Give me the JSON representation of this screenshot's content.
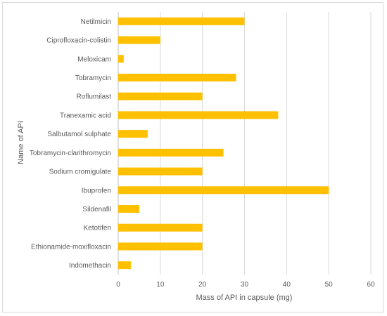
{
  "chart_data": {
    "type": "bar",
    "orientation": "horizontal",
    "categories": [
      "Netilmicin",
      "Ciprofloxacin-colistin",
      "Meloxicam",
      "Tobramycin",
      "Roflumilast",
      "Tranexamic acid",
      "Salbutamol sulphate",
      "Tobramycin-clarithromycin",
      "Sodium cromigulate",
      "Ibuprofen",
      "Sildenafil",
      "Ketotifen",
      "Ethionamide-moxifloxacin",
      "Indomethacin"
    ],
    "values": [
      30,
      10,
      1.3,
      28,
      20,
      38,
      7,
      25,
      20,
      50,
      5,
      20,
      20,
      3
    ],
    "xlabel": "Mass of API in capsule (mg)",
    "ylabel": "Name of API",
    "xlim": [
      0,
      60
    ],
    "xticks": [
      0,
      10,
      20,
      30,
      40,
      50,
      60
    ],
    "grid": "vertical",
    "legend": "none",
    "bar_color": "#FFC000"
  }
}
